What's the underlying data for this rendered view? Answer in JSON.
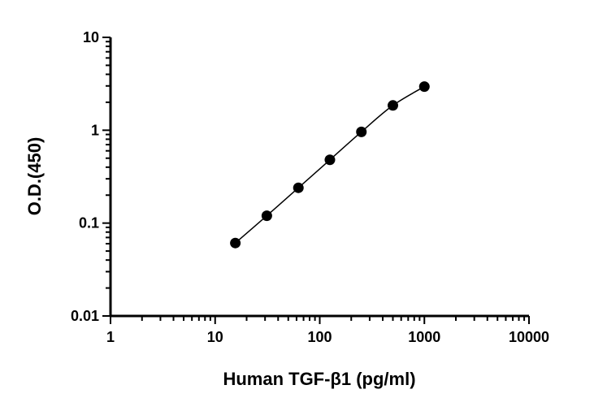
{
  "chart_data": {
    "type": "scatter",
    "xlabel": "Human TGF-β1 (pg/ml)",
    "ylabel": "O.D.(450)",
    "xscale": "log",
    "yscale": "log",
    "xlim": [
      1,
      10000
    ],
    "ylim": [
      0.01,
      10
    ],
    "x_ticks": [
      "1",
      "10",
      "100",
      "1000",
      "10000"
    ],
    "y_ticks": [
      "0.01",
      "0.1",
      "1",
      "10"
    ],
    "grid": false,
    "fit_line": true,
    "series": [
      {
        "x": [
          15.6,
          31.2,
          62.5,
          125,
          250,
          500,
          1000
        ],
        "y": [
          0.061,
          0.12,
          0.24,
          0.48,
          0.96,
          1.85,
          2.95
        ]
      }
    ]
  }
}
